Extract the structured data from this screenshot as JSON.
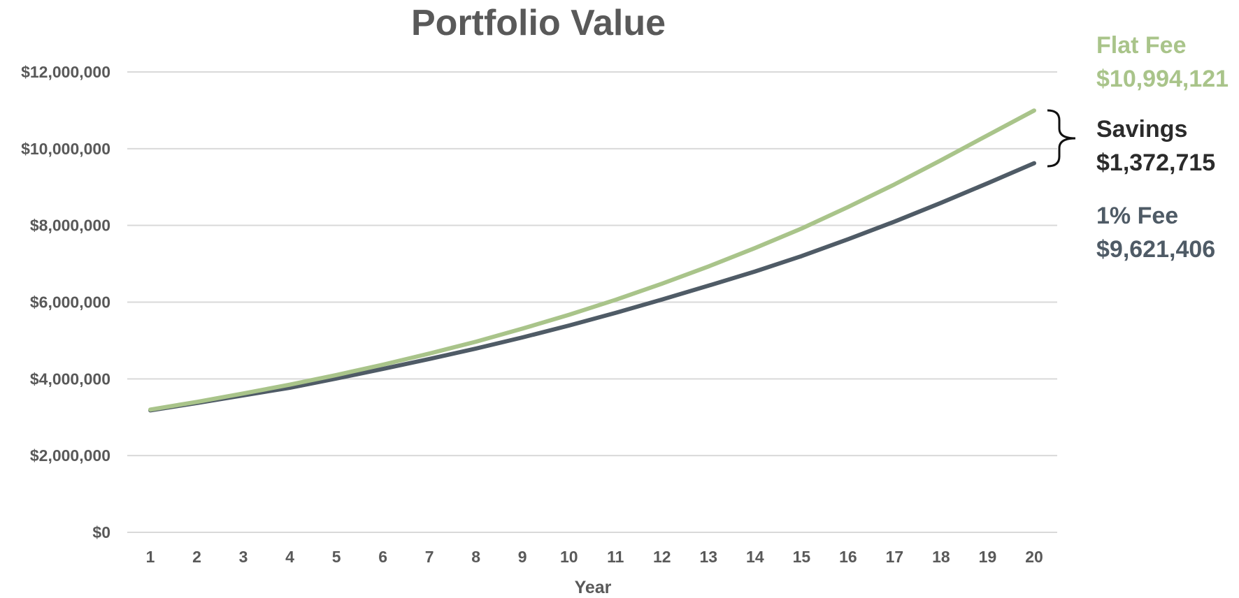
{
  "colors": {
    "flat_fee": "#a9c48a",
    "one_percent_fee": "#4f5b66",
    "savings": "#2b2b2b",
    "text": "#595959",
    "grid": "#d9d9d9"
  },
  "chart_data": {
    "type": "line",
    "title": "Portfolio Value",
    "xlabel": "Year",
    "ylabel": "",
    "categories": [
      "1",
      "2",
      "3",
      "4",
      "5",
      "6",
      "7",
      "8",
      "9",
      "10",
      "11",
      "12",
      "13",
      "14",
      "15",
      "16",
      "17",
      "18",
      "19",
      "20"
    ],
    "ylim": [
      0,
      12000000
    ],
    "yticks": [
      0,
      2000000,
      4000000,
      6000000,
      8000000,
      10000000,
      12000000
    ],
    "ytick_labels": [
      "$0",
      "$2,000,000",
      "$4,000,000",
      "$6,000,000",
      "$8,000,000",
      "$10,000,000",
      "$12,000,000"
    ],
    "grid": true,
    "legend": "none",
    "series": [
      {
        "name": "Flat Fee",
        "values": [
          3200000,
          3400000,
          3620000,
          3850000,
          4100000,
          4370000,
          4660000,
          4970000,
          5310000,
          5670000,
          6060000,
          6480000,
          6930000,
          7410000,
          7920000,
          8480000,
          9070000,
          9700000,
          10350000,
          10994121
        ]
      },
      {
        "name": "1% Fee",
        "values": [
          3180000,
          3370000,
          3570000,
          3770000,
          4010000,
          4260000,
          4520000,
          4790000,
          5080000,
          5390000,
          5720000,
          6070000,
          6430000,
          6800000,
          7200000,
          7640000,
          8100000,
          8590000,
          9100000,
          9621406
        ]
      }
    ],
    "annotations": [
      {
        "label": "Flat Fee",
        "value": "$10,994,121"
      },
      {
        "label": "Savings",
        "value": "$1,372,715"
      },
      {
        "label": "1% Fee",
        "value": "$9,621,406"
      }
    ]
  }
}
